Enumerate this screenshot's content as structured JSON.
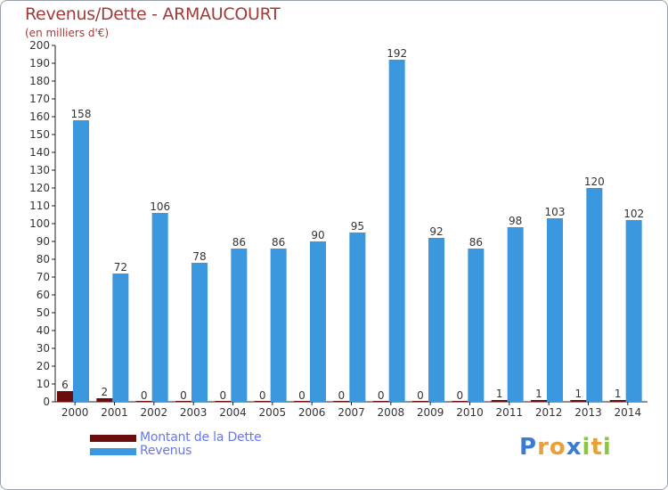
{
  "header": {
    "title": "Revenus/Dette - ARMAUCOURT",
    "subtitle": "(en milliers d'€)"
  },
  "legend": {
    "items": [
      {
        "label": "Montant de la Dette",
        "color": "#6b0d0d"
      },
      {
        "label": "Revenus",
        "color": "#3b97de"
      }
    ]
  },
  "logo": {
    "text": "Proxiti",
    "letters": [
      {
        "ch": "P",
        "color": "#3a7bd5"
      },
      {
        "ch": "r",
        "color": "#e8a13a"
      },
      {
        "ch": "o",
        "color": "#e8a13a"
      },
      {
        "ch": "x",
        "color": "#3a7bd5"
      },
      {
        "ch": "i",
        "color": "#8cc63f"
      },
      {
        "ch": "t",
        "color": "#e8a13a"
      },
      {
        "ch": "i",
        "color": "#8cc63f"
      }
    ]
  },
  "chart_data": {
    "type": "bar",
    "title": "Revenus/Dette - ARMAUCOURT",
    "subtitle": "(en milliers d'€)",
    "xlabel": "",
    "ylabel": "",
    "ylim": [
      0,
      200
    ],
    "yticks": [
      0,
      10,
      20,
      30,
      40,
      50,
      60,
      70,
      80,
      90,
      100,
      110,
      120,
      130,
      140,
      150,
      160,
      170,
      180,
      190,
      200
    ],
    "grid": false,
    "legend_position": "bottom-left",
    "categories": [
      "2000",
      "2001",
      "2002",
      "2003",
      "2004",
      "2005",
      "2006",
      "2007",
      "2008",
      "2009",
      "2010",
      "2011",
      "2012",
      "2013",
      "2014"
    ],
    "series": [
      {
        "name": "Montant de la Dette",
        "color": "#6b0d0d",
        "values": [
          6,
          2,
          0,
          0,
          0,
          0,
          0,
          0,
          0,
          0,
          0,
          1,
          1,
          1,
          1
        ]
      },
      {
        "name": "Revenus",
        "color": "#3b97de",
        "values": [
          158,
          72,
          106,
          78,
          86,
          86,
          90,
          95,
          192,
          92,
          86,
          98,
          103,
          120,
          102
        ]
      }
    ]
  }
}
